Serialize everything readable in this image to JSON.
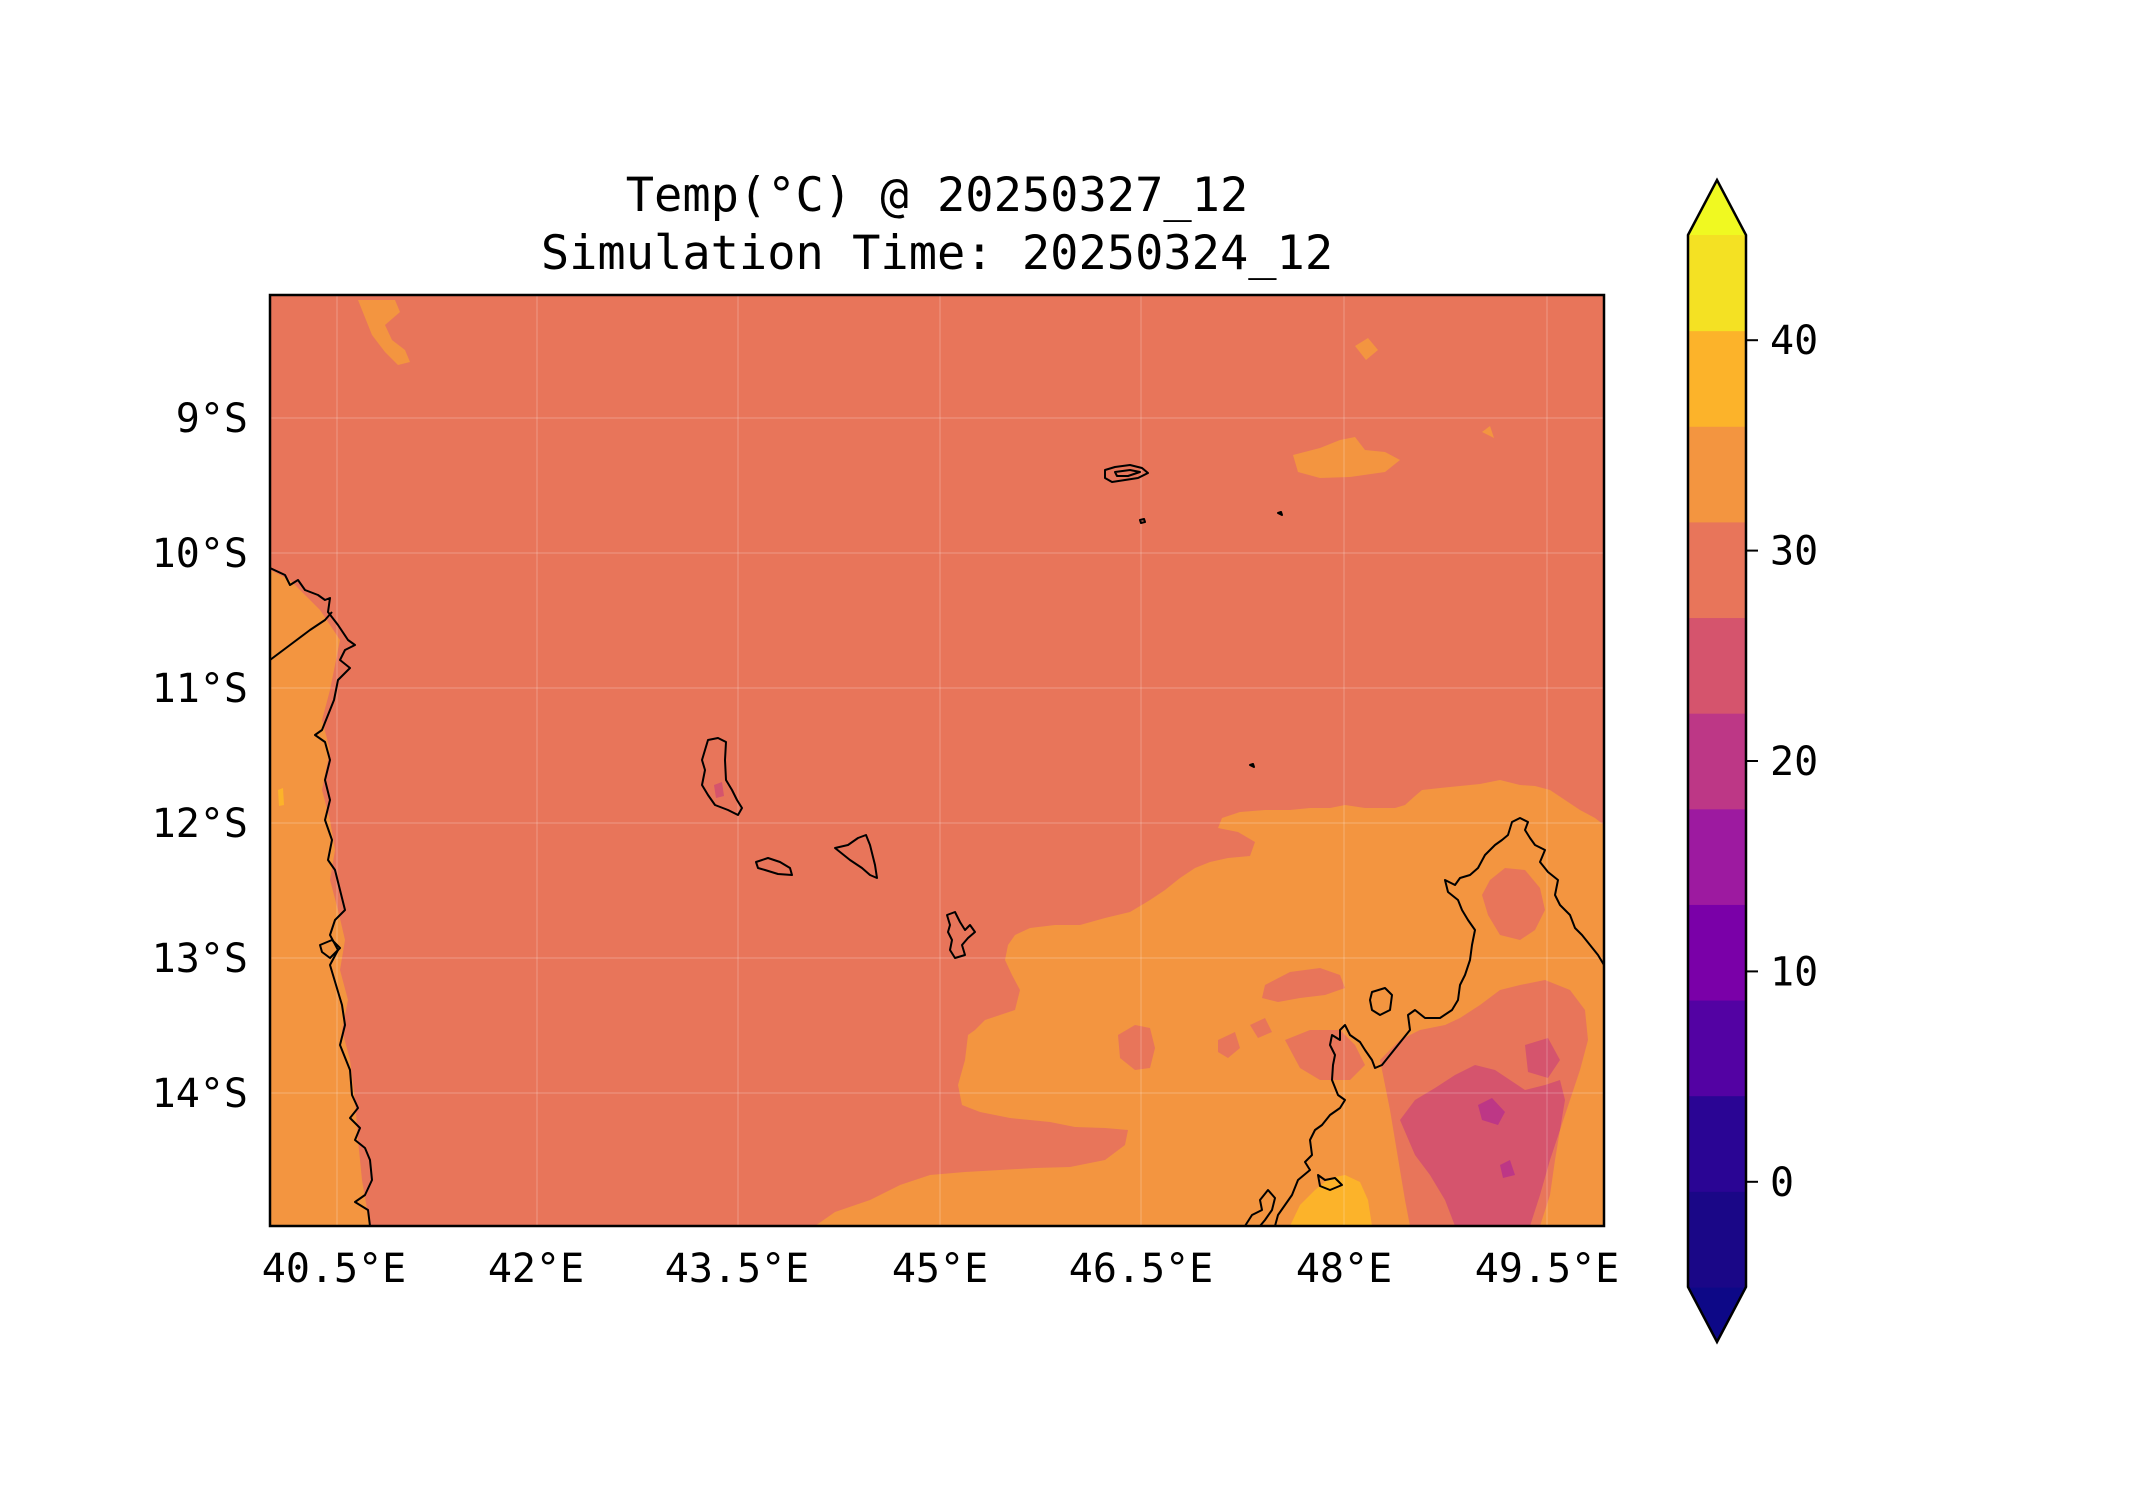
{
  "title": {
    "line1": "Temp(°C) @ 20250327_12",
    "line2": "Simulation Time: 20250324_12"
  },
  "map": {
    "type": "filled-contour",
    "variable": "Temp(°C)",
    "lon_range": [
      40.0,
      49.7
    ],
    "lat_range": [
      -14.9,
      -8.0
    ],
    "lon_ticks": [
      "40.5°E",
      "42°E",
      "43.5°E",
      "45°E",
      "46.5°E",
      "48°E",
      "49.5°E"
    ],
    "lat_ticks": [
      "9°S",
      "10°S",
      "11°S",
      "12°S",
      "13°S",
      "14°S"
    ],
    "gridlines": true,
    "coastlines": true,
    "background_level": "25–30",
    "colors": {
      "ocean_25_30": "#e8755a",
      "warm_30_35": "#f39540",
      "hot_35_40": "#fcb32a",
      "cool_20_25": "#d5546d",
      "cooler_15_20": "#bd3786"
    }
  },
  "colorbar": {
    "tick_labels": [
      "0",
      "10",
      "20",
      "30",
      "40"
    ],
    "levels": [
      -5,
      0,
      5,
      10,
      15,
      20,
      25,
      30,
      35,
      40,
      45
    ],
    "extend": "both",
    "colors": [
      "#1a0787",
      "#2a0594",
      "#5302a3",
      "#7a00a8",
      "#9d1aa0",
      "#bd3786",
      "#d5546d",
      "#e8755a",
      "#f39540",
      "#fcb32a",
      "#f4e123"
    ],
    "under_color": "#0d0887",
    "over_color": "#f0f921"
  }
}
